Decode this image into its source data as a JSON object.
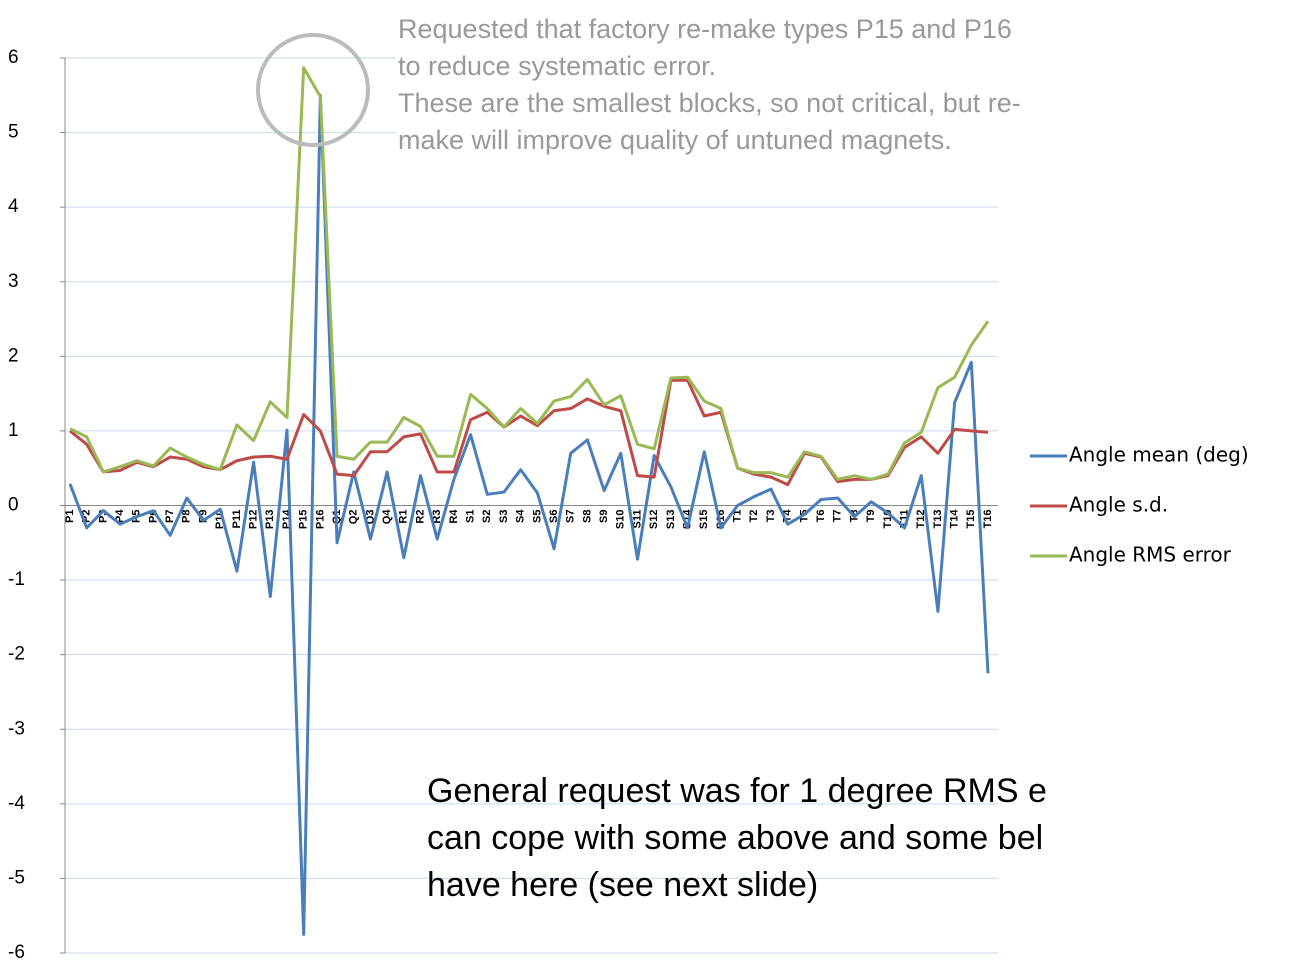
{
  "chart_data": {
    "type": "line",
    "categories": [
      "P1",
      "P2",
      "P3",
      "P4",
      "P5",
      "P6",
      "P7",
      "P8",
      "P9",
      "P10",
      "P11",
      "P12",
      "P13",
      "P14",
      "P15",
      "P16",
      "Q1",
      "Q2",
      "Q3",
      "Q4",
      "R1",
      "R2",
      "R3",
      "R4",
      "S1",
      "S2",
      "S3",
      "S4",
      "S5",
      "S6",
      "S7",
      "S8",
      "S9",
      "S10",
      "S11",
      "S12",
      "S13",
      "S14",
      "S15",
      "S16",
      "T1",
      "T2",
      "T3",
      "T4",
      "T5",
      "T6",
      "T7",
      "T8",
      "T9",
      "T10",
      "T11",
      "T12",
      "T13",
      "T14",
      "T15",
      "T16"
    ],
    "series": [
      {
        "name": "Angle mean (deg)",
        "color": "#4a7ebb",
        "values": [
          0.29,
          -0.3,
          -0.07,
          -0.25,
          -0.15,
          -0.07,
          -0.4,
          0.1,
          -0.2,
          -0.05,
          -0.88,
          0.58,
          -1.22,
          1.01,
          -5.75,
          5.5,
          -0.5,
          0.45,
          -0.45,
          0.45,
          -0.7,
          0.4,
          -0.45,
          0.35,
          0.95,
          0.15,
          0.18,
          0.48,
          0.17,
          -0.58,
          0.7,
          0.88,
          0.2,
          0.7,
          -0.72,
          0.67,
          0.25,
          -0.3,
          0.72,
          -0.3,
          0.0,
          0.12,
          0.22,
          -0.25,
          -0.12,
          0.08,
          0.1,
          -0.15,
          0.05,
          -0.1,
          -0.3,
          0.4,
          -1.42,
          1.38,
          1.92,
          -2.25
        ]
      },
      {
        "name": "Angle s.d.",
        "color": "#be4b48",
        "values": [
          1.0,
          0.82,
          0.45,
          0.47,
          0.58,
          0.52,
          0.65,
          0.62,
          0.52,
          0.48,
          0.6,
          0.65,
          0.66,
          0.62,
          1.22,
          1.0,
          0.42,
          0.4,
          0.72,
          0.72,
          0.92,
          0.96,
          0.45,
          0.45,
          1.15,
          1.25,
          1.05,
          1.2,
          1.07,
          1.27,
          1.3,
          1.43,
          1.33,
          1.27,
          0.4,
          0.38,
          1.68,
          1.68,
          1.2,
          1.25,
          0.5,
          0.42,
          0.38,
          0.28,
          0.7,
          0.65,
          0.32,
          0.35,
          0.35,
          0.4,
          0.78,
          0.92,
          0.7,
          1.02,
          1.0,
          0.98
        ]
      },
      {
        "name": "Angle RMS error",
        "color": "#98b954",
        "values": [
          1.03,
          0.92,
          0.45,
          0.52,
          0.6,
          0.53,
          0.77,
          0.65,
          0.55,
          0.48,
          1.08,
          0.87,
          1.39,
          1.18,
          5.87,
          5.48,
          0.66,
          0.62,
          0.85,
          0.85,
          1.18,
          1.06,
          0.66,
          0.66,
          1.49,
          1.3,
          1.05,
          1.3,
          1.1,
          1.4,
          1.46,
          1.69,
          1.35,
          1.47,
          0.82,
          0.76,
          1.71,
          1.72,
          1.4,
          1.3,
          0.5,
          0.44,
          0.44,
          0.38,
          0.72,
          0.66,
          0.35,
          0.4,
          0.35,
          0.42,
          0.84,
          0.98,
          1.58,
          1.72,
          2.15,
          2.47
        ]
      }
    ],
    "ylim": [
      -6,
      6
    ],
    "yticks": [
      -6,
      -5,
      -4,
      -3,
      -2,
      -1,
      0,
      1,
      2,
      3,
      4,
      5,
      6
    ],
    "grid": true,
    "legend": "right",
    "annotations": [
      [
        "Requested that factory re-make types P15 and P16",
        "to reduce systematic error.",
        "These are the smallest blocks, so not critical, but re-",
        "make will improve quality of untuned magnets."
      ],
      [
        "General request was for 1 degree RMS e",
        "can cope with some above and some bel",
        "have here (see next slide)"
      ]
    ]
  }
}
